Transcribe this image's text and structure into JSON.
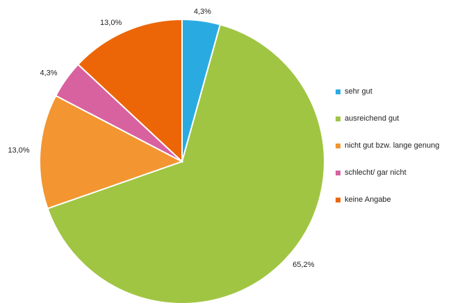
{
  "chart_data": {
    "type": "pie",
    "title": "",
    "legend_position": "right",
    "slices": [
      {
        "label": "sehr gut",
        "value": 4.3,
        "value_label": "4,3%",
        "color": "#29ABE2"
      },
      {
        "label": "ausreichend gut",
        "value": 65.2,
        "value_label": "65,2%",
        "color": "#A0C543"
      },
      {
        "label": "nicht gut bzw. lange genung",
        "value": 13.0,
        "value_label": "13,0%",
        "color": "#F39530"
      },
      {
        "label": "schlecht/ gar nicht",
        "value": 4.3,
        "value_label": "4,3%",
        "color": "#D8619F"
      },
      {
        "label": "keine Angabe",
        "value": 13.0,
        "value_label": "13,0%",
        "color": "#EC6608"
      }
    ]
  }
}
